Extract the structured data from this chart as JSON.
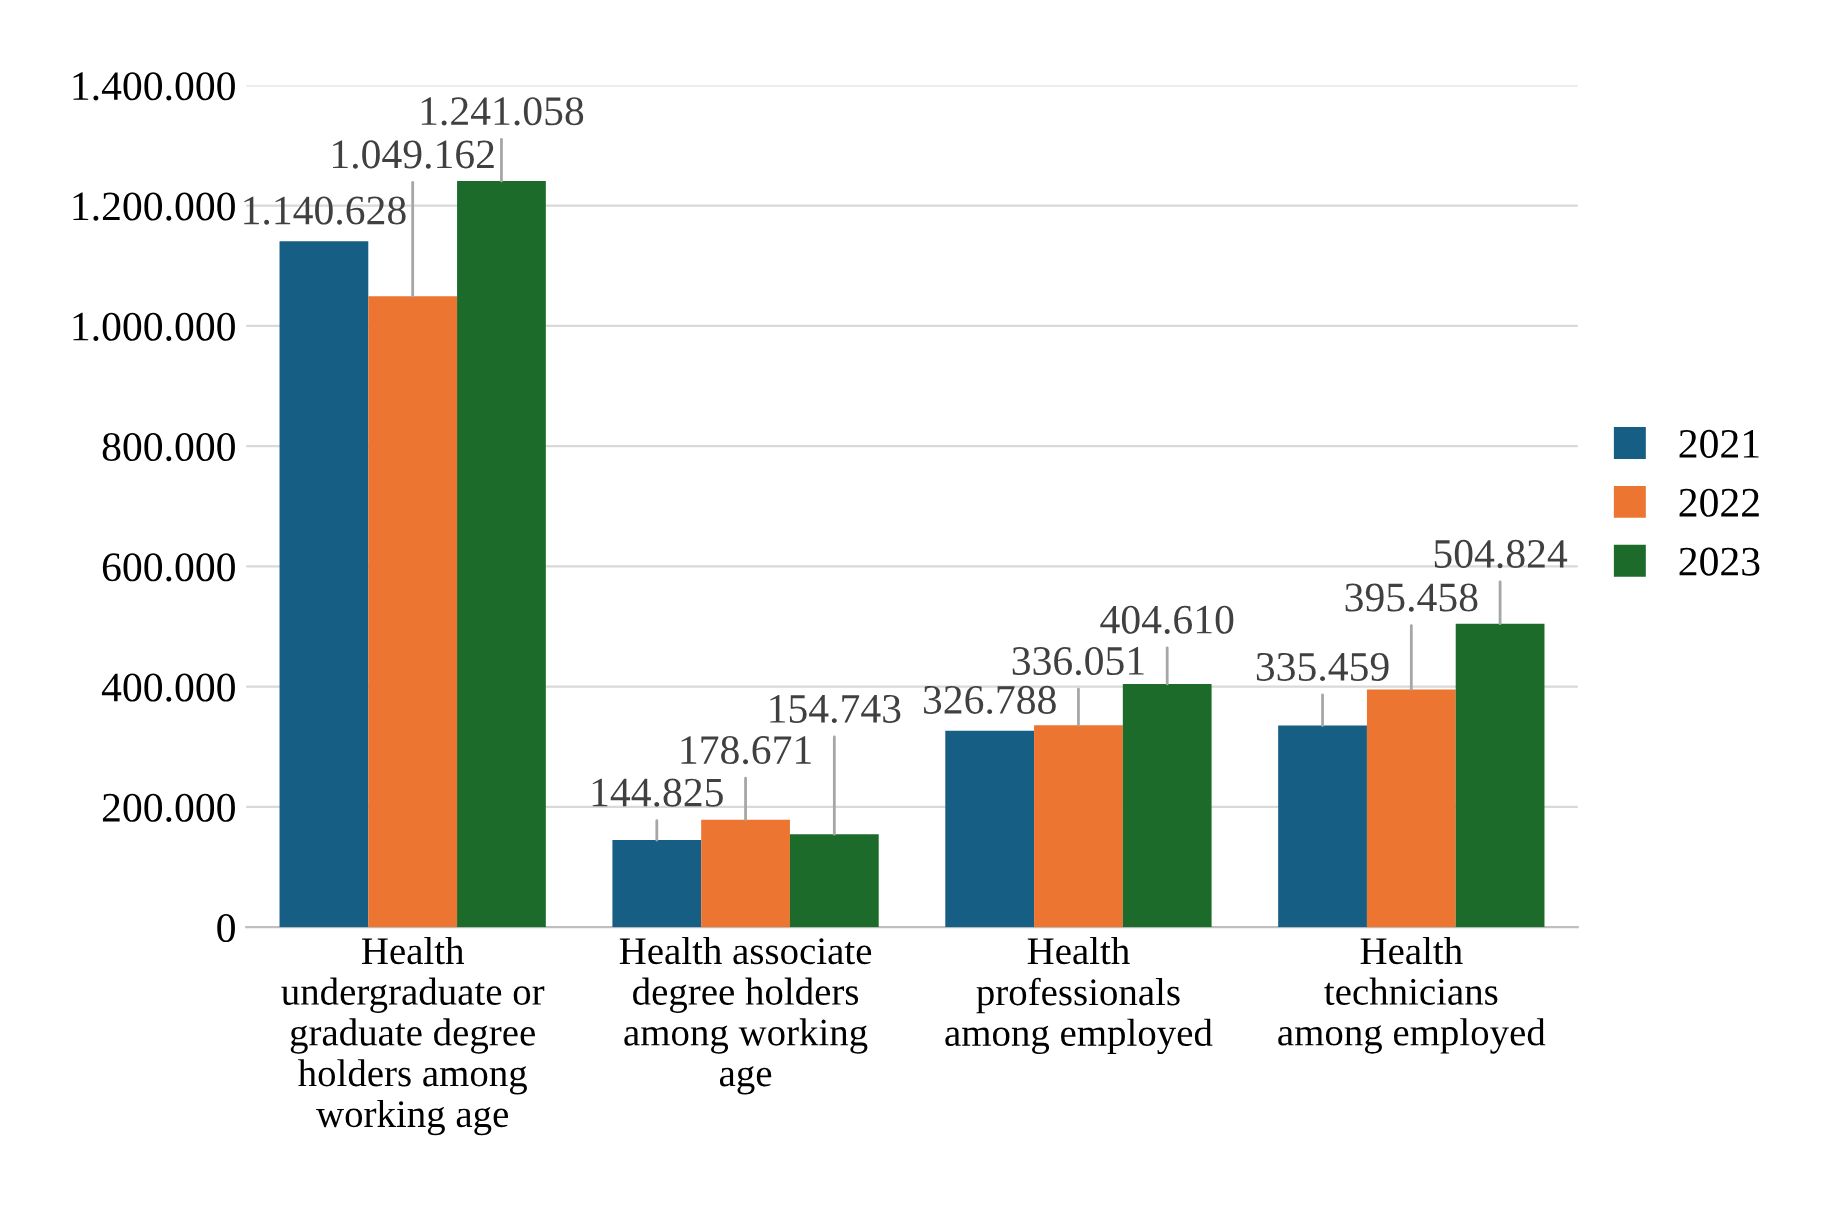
{
  "chart_data": {
    "type": "bar",
    "categories": [
      "Health\nundergraduate or\ngraduate degree\nholders among\nworking age",
      "Health associate\ndegree holders\namong working\nage",
      "Health\nprofessionals\namong employed",
      "Health\ntechnicians\namong employed"
    ],
    "series": [
      {
        "name": "2021",
        "color": "#175e84",
        "values": [
          1140628,
          144825,
          326788,
          335459
        ],
        "value_labels": [
          "1.140.628",
          "144.825",
          "326.788",
          "335.459"
        ]
      },
      {
        "name": "2022",
        "color": "#ec7532",
        "values": [
          1049162,
          178671,
          336051,
          395458
        ],
        "value_labels": [
          "1.049.162",
          "178.671",
          "336.051",
          "395.458"
        ]
      },
      {
        "name": "2023",
        "color": "#1d6b2a",
        "values": [
          1241058,
          154743,
          404610,
          504824
        ],
        "value_labels": [
          "1.241.058",
          "154.743",
          "404.610",
          "504.824"
        ]
      }
    ],
    "ylim": [
      0,
      1400000
    ],
    "yticks": [
      0,
      {
        "value": 200000,
        "label": "200.000"
      },
      {
        "value": 400000,
        "label": "400.000"
      },
      {
        "value": 600000,
        "label": "600.000"
      },
      {
        "value": 800000,
        "label": "800.000"
      },
      {
        "value": 1000000,
        "label": "1.000.000"
      },
      {
        "value": 1200000,
        "label": "1.200.000"
      },
      {
        "value": 1400000,
        "label": "1.400.000"
      }
    ],
    "grid": "y",
    "legend": "right"
  }
}
